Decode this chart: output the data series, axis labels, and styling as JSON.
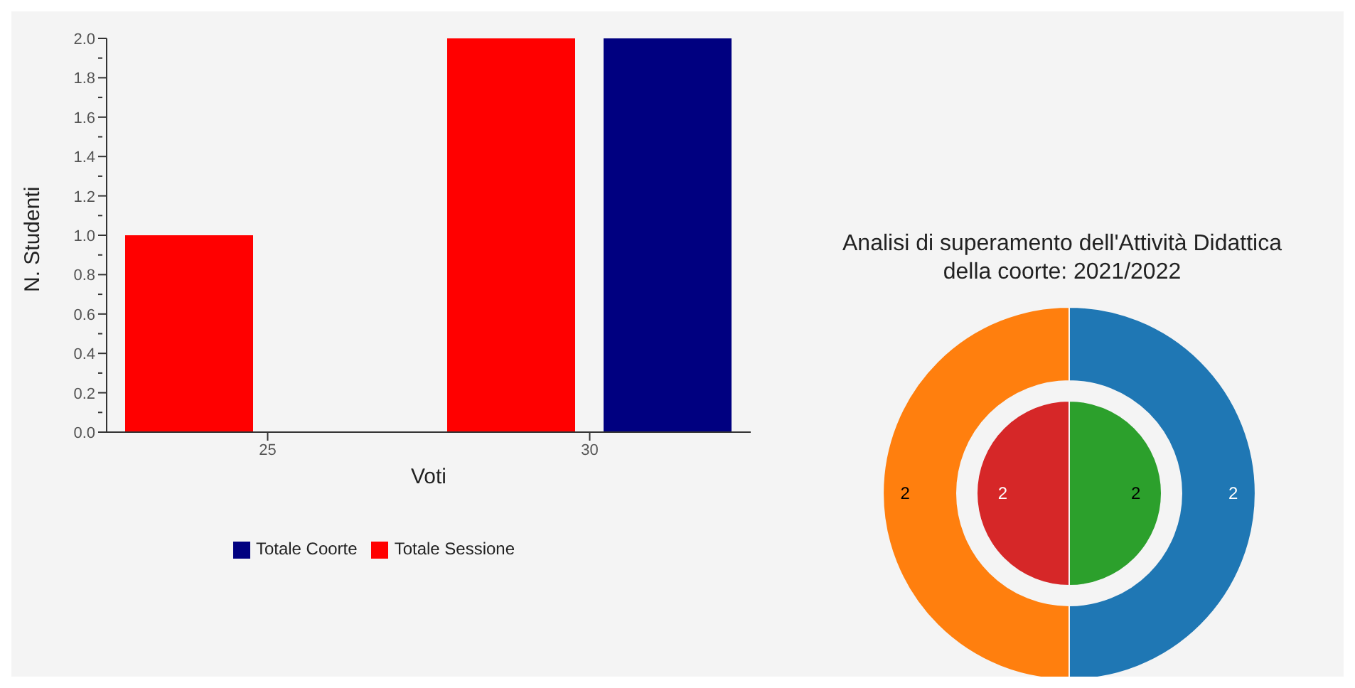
{
  "chart_data": [
    {
      "type": "bar",
      "xlabel": "Voti",
      "ylabel": "N. Studenti",
      "categories": [
        "25",
        "30"
      ],
      "series": [
        {
          "name": "Totale Sessione",
          "color": "#ff0000",
          "values": [
            1,
            2
          ]
        },
        {
          "name": "Totale Coorte",
          "color": "#000080",
          "values": [
            0,
            2
          ]
        }
      ],
      "ylim": [
        0,
        2
      ],
      "yticks": [
        {
          "value": 0,
          "label": "0.0"
        },
        {
          "value": 0.1,
          "label": null
        },
        {
          "value": 0.2,
          "label": "0.2"
        },
        {
          "value": 0.3,
          "label": null
        },
        {
          "value": 0.4,
          "label": "0.4"
        },
        {
          "value": 0.5,
          "label": null
        },
        {
          "value": 0.6,
          "label": "0.6"
        },
        {
          "value": 0.7,
          "label": null
        },
        {
          "value": 0.8,
          "label": "0.8"
        },
        {
          "value": 0.9,
          "label": null
        },
        {
          "value": 1,
          "label": "1.0"
        },
        {
          "value": 1.1,
          "label": null
        },
        {
          "value": 1.2,
          "label": "1.2"
        },
        {
          "value": 1.3,
          "label": null
        },
        {
          "value": 1.4,
          "label": "1.4"
        },
        {
          "value": 1.5,
          "label": null
        },
        {
          "value": 1.6,
          "label": "1.6"
        },
        {
          "value": 1.7,
          "label": null
        },
        {
          "value": 1.8,
          "label": "1.8"
        },
        {
          "value": 1.9,
          "label": null
        },
        {
          "value": 2,
          "label": "2.0"
        }
      ],
      "grid": false,
      "legend": "bottom"
    },
    {
      "type": "donut",
      "title": "Analisi di superamento dell'Attività Didattica della coorte: 2021/2022",
      "categories": [
        null,
        null
      ],
      "series": [
        {
          "type": "donut",
          "values": [
            2,
            2
          ],
          "colors": [
            "#1f77b4",
            "#ff7f0e"
          ]
        },
        {
          "type": "pie",
          "values": [
            2,
            2
          ],
          "colors": [
            "#2ca02c",
            "#d62728"
          ]
        }
      ],
      "data_labels": true,
      "legend": false
    }
  ]
}
